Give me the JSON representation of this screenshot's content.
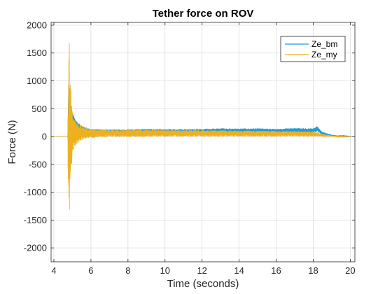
{
  "chart_data": {
    "type": "line",
    "title": "Tether force on ROV",
    "xlabel": "Time (seconds)",
    "ylabel": "Force (N)",
    "xlim": [
      3.85,
      20.25
    ],
    "ylim": [
      -2250,
      2050
    ],
    "xticks": [
      4,
      6,
      8,
      10,
      12,
      14,
      16,
      18,
      20
    ],
    "yticks": [
      -2000,
      -1500,
      -1000,
      -500,
      0,
      500,
      1000,
      1500,
      2000
    ],
    "grid": true,
    "legend_position": "top-right",
    "series": [
      {
        "name": "Ze_bm",
        "color": "#1f9bd8",
        "x": [
          3.85,
          4.75,
          4.8,
          4.9,
          5.0,
          5.2,
          5.5,
          6.0,
          7.0,
          8.0,
          9.0,
          10.0,
          11.0,
          12.0,
          13.0,
          14.0,
          15.0,
          16.0,
          17.0,
          18.0,
          18.2,
          18.5,
          19.0,
          19.5,
          20.25
        ],
        "values": [
          0,
          0,
          950,
          450,
          320,
          200,
          140,
          100,
          95,
          92,
          100,
          95,
          98,
          100,
          110,
          105,
          110,
          100,
          115,
          105,
          140,
          55,
          20,
          5,
          0
        ],
        "noise": [
          0,
          0,
          0,
          150,
          110,
          80,
          50,
          35,
          35,
          35,
          40,
          38,
          38,
          38,
          40,
          40,
          40,
          38,
          40,
          40,
          50,
          30,
          12,
          6,
          0
        ]
      },
      {
        "name": "Ze_my",
        "color": "#edb120",
        "x": [
          3.85,
          4.75,
          4.8,
          4.9,
          5.0,
          5.2,
          5.5,
          6.0,
          7.0,
          8.0,
          9.0,
          10.0,
          11.0,
          12.0,
          13.0,
          14.0,
          15.0,
          16.0,
          17.0,
          18.0,
          18.2,
          18.5,
          19.0,
          19.5,
          20.25
        ],
        "values": [
          0,
          0,
          0,
          80,
          60,
          60,
          60,
          60,
          60,
          58,
          58,
          58,
          58,
          58,
          55,
          55,
          52,
          50,
          50,
          45,
          40,
          20,
          8,
          0,
          0
        ],
        "noise": [
          0,
          0,
          2100,
          900,
          420,
          220,
          130,
          85,
          70,
          65,
          65,
          60,
          60,
          60,
          58,
          55,
          55,
          52,
          50,
          48,
          40,
          25,
          10,
          3,
          0
        ]
      }
    ]
  }
}
